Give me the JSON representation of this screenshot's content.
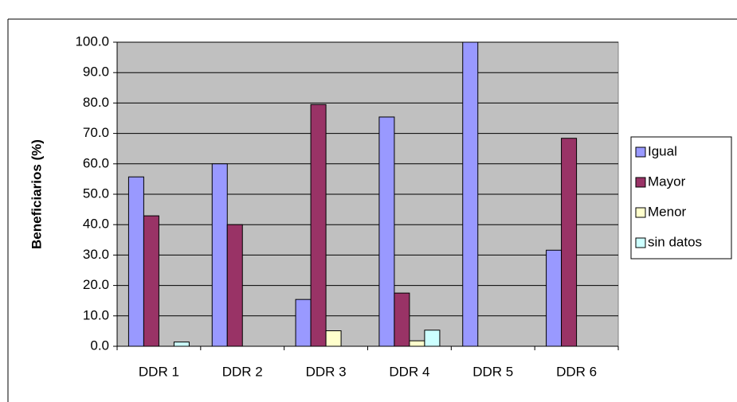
{
  "chart_data": {
    "type": "bar",
    "y_label": "Beneficiarios (%)",
    "categories": [
      "DDR 1",
      "DDR 2",
      "DDR 3",
      "DDR 4",
      "DDR 5",
      "DDR 6"
    ],
    "series": [
      {
        "name": "Igual",
        "color": "#9999ff",
        "values": [
          55.7,
          60.0,
          15.4,
          75.4,
          100.0,
          31.6
        ]
      },
      {
        "name": "Mayor",
        "color": "#993366",
        "values": [
          42.9,
          40.0,
          79.5,
          17.5,
          0,
          68.4
        ]
      },
      {
        "name": "Menor",
        "color": "#ffffcc",
        "values": [
          0,
          0,
          5.1,
          1.8,
          0,
          0
        ]
      },
      {
        "name": "sin datos",
        "color": "#ccffff",
        "values": [
          1.4,
          0,
          0,
          5.3,
          0,
          0
        ]
      }
    ],
    "ylim": [
      0,
      100
    ],
    "yticks": [
      {
        "value": 0,
        "label": "0.0"
      },
      {
        "value": 10,
        "label": "10.0"
      },
      {
        "value": 20,
        "label": "20.0"
      },
      {
        "value": 30,
        "label": "30.0"
      },
      {
        "value": 40,
        "label": "40.0"
      },
      {
        "value": 50,
        "label": "50.0"
      },
      {
        "value": 60,
        "label": "60.0"
      },
      {
        "value": 70,
        "label": "70.0"
      },
      {
        "value": 80,
        "label": "80.0"
      },
      {
        "value": 90,
        "label": "90.0"
      },
      {
        "value": 100,
        "label": "100.0"
      }
    ],
    "grid": true,
    "plot_background": "#c0c0c0",
    "legend": "right"
  }
}
